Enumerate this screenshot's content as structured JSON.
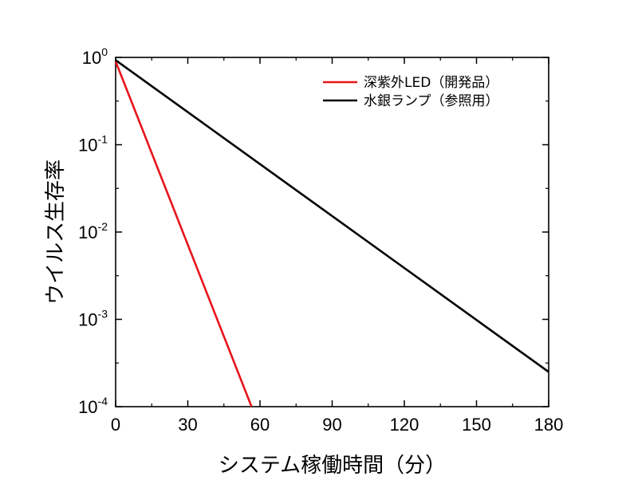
{
  "chart_data": {
    "type": "line",
    "title": "",
    "xlabel": "システム稼働時間（分）",
    "ylabel": "ウイルス生存率",
    "xlim": [
      0,
      180
    ],
    "ylim": [
      0.0001,
      1
    ],
    "yscale": "log",
    "x_ticks": [
      0,
      30,
      60,
      90,
      120,
      150,
      180
    ],
    "y_ticks": [
      {
        "value": 1,
        "base": "10",
        "exp": "0"
      },
      {
        "value": 0.1,
        "base": "10",
        "exp": "-1"
      },
      {
        "value": 0.01,
        "base": "10",
        "exp": "-2"
      },
      {
        "value": 0.001,
        "base": "10",
        "exp": "-3"
      },
      {
        "value": 0.0001,
        "base": "10",
        "exp": "-4"
      }
    ],
    "grid": false,
    "legend_position": "top-right",
    "series": [
      {
        "name": "深紫外LED（開発品）",
        "color": "#e8141b",
        "x": [
          0,
          56.5
        ],
        "y": [
          0.9,
          0.0001
        ]
      },
      {
        "name": "水銀ランプ（参照用）",
        "color": "#000000",
        "x": [
          0,
          180
        ],
        "y": [
          0.93,
          0.00025
        ]
      }
    ]
  }
}
